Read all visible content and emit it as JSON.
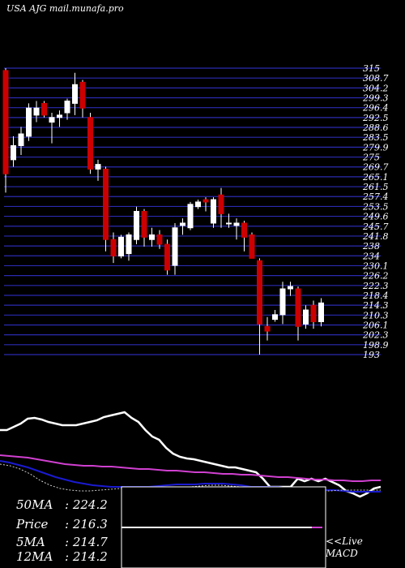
{
  "title": "USA AJG mail.munafa.pro",
  "chart_data": [
    {
      "type": "candlestick",
      "title": "USA AJG mail.munafa.pro",
      "y_tick_labels": [
        "315",
        "308.7",
        "304.2",
        "299.3",
        "296.4",
        "292.5",
        "288.6",
        "283.5",
        "279.9",
        "275",
        "269.7",
        "265.1",
        "261.5",
        "257.4",
        "253.5",
        "249.6",
        "245.7",
        "241.8",
        "238",
        "234",
        "230.1",
        "226.2",
        "222.3",
        "218.4",
        "214.3",
        "210.3",
        "206.1",
        "202.3",
        "198.9",
        "193"
      ],
      "ylim": [
        193,
        315
      ],
      "candles": [
        {
          "o": 270,
          "h": 315,
          "l": 262,
          "c": 314,
          "color": "red"
        },
        {
          "o": 276,
          "h": 286,
          "l": 273,
          "c": 282,
          "color": "white"
        },
        {
          "o": 282,
          "h": 290,
          "l": 278,
          "c": 287,
          "color": "white"
        },
        {
          "o": 286,
          "h": 300,
          "l": 284,
          "c": 298,
          "color": "white"
        },
        {
          "o": 298,
          "h": 301,
          "l": 292,
          "c": 295,
          "color": "white"
        },
        {
          "o": 300,
          "h": 301,
          "l": 294,
          "c": 295,
          "color": "red"
        },
        {
          "o": 292,
          "h": 296,
          "l": 283,
          "c": 294,
          "color": "white"
        },
        {
          "o": 294,
          "h": 297,
          "l": 290,
          "c": 295,
          "color": "white"
        },
        {
          "o": 296,
          "h": 302,
          "l": 293,
          "c": 301,
          "color": "white"
        },
        {
          "o": 300,
          "h": 313,
          "l": 295,
          "c": 308,
          "color": "white"
        },
        {
          "o": 309,
          "h": 310,
          "l": 294,
          "c": 298,
          "color": "red"
        },
        {
          "o": 294,
          "h": 296,
          "l": 270,
          "c": 272,
          "color": "red"
        },
        {
          "o": 272,
          "h": 276,
          "l": 267,
          "c": 274,
          "color": "white"
        },
        {
          "o": 272,
          "h": 273,
          "l": 237,
          "c": 242,
          "color": "red"
        },
        {
          "o": 242,
          "h": 245,
          "l": 232,
          "c": 235,
          "color": "red"
        },
        {
          "o": 235,
          "h": 244,
          "l": 234,
          "c": 243,
          "color": "white"
        },
        {
          "o": 236,
          "h": 245,
          "l": 233,
          "c": 244,
          "color": "white"
        },
        {
          "o": 242,
          "h": 256,
          "l": 240,
          "c": 254,
          "color": "white"
        },
        {
          "o": 254,
          "h": 255,
          "l": 239,
          "c": 243,
          "color": "red"
        },
        {
          "o": 242,
          "h": 247,
          "l": 239,
          "c": 244,
          "color": "white"
        },
        {
          "o": 244,
          "h": 246,
          "l": 238,
          "c": 240,
          "color": "red"
        },
        {
          "o": 240,
          "h": 242,
          "l": 227,
          "c": 229,
          "color": "red"
        },
        {
          "o": 231,
          "h": 249,
          "l": 227,
          "c": 247,
          "color": "white"
        },
        {
          "o": 248,
          "h": 251,
          "l": 244,
          "c": 249,
          "color": "white"
        },
        {
          "o": 247,
          "h": 258,
          "l": 246,
          "c": 257,
          "color": "white"
        },
        {
          "o": 258,
          "h": 259,
          "l": 255,
          "c": 256,
          "color": "white"
        },
        {
          "o": 258,
          "h": 260,
          "l": 254,
          "c": 259,
          "color": "red"
        },
        {
          "o": 249,
          "h": 260,
          "l": 247,
          "c": 259,
          "color": "white"
        },
        {
          "o": 261,
          "h": 264,
          "l": 247,
          "c": 253,
          "color": "red"
        },
        {
          "o": 249,
          "h": 253,
          "l": 247,
          "c": 249,
          "color": "white"
        },
        {
          "o": 249,
          "h": 251,
          "l": 242,
          "c": 248,
          "color": "white"
        },
        {
          "o": 249,
          "h": 250,
          "l": 237,
          "c": 243,
          "color": "red"
        },
        {
          "o": 244,
          "h": 245,
          "l": 234,
          "c": 234,
          "color": "red"
        },
        {
          "o": 233,
          "h": 234,
          "l": 193,
          "c": 206,
          "color": "red"
        },
        {
          "o": 205,
          "h": 209,
          "l": 199,
          "c": 203,
          "color": "red"
        },
        {
          "o": 208,
          "h": 212,
          "l": 207,
          "c": 210,
          "color": "white"
        },
        {
          "o": 210,
          "h": 224,
          "l": 206,
          "c": 221,
          "color": "white"
        },
        {
          "o": 221,
          "h": 224,
          "l": 218,
          "c": 222,
          "color": "white"
        },
        {
          "o": 221,
          "h": 222,
          "l": 199,
          "c": 205,
          "color": "red"
        },
        {
          "o": 206,
          "h": 214,
          "l": 204,
          "c": 212,
          "color": "white"
        },
        {
          "o": 214,
          "h": 216,
          "l": 204,
          "c": 207,
          "color": "red"
        },
        {
          "o": 207,
          "h": 217,
          "l": 205,
          "c": 215,
          "color": "white"
        }
      ]
    },
    {
      "type": "line",
      "series": [
        {
          "color": "#ffffff",
          "values": [
            530,
            530,
            526,
            522,
            516,
            515,
            517,
            520,
            522,
            524,
            524,
            524,
            522,
            520,
            518,
            514,
            512,
            510,
            508,
            515,
            520,
            530,
            538,
            542,
            552,
            559,
            563,
            565,
            566,
            568,
            570,
            572,
            574,
            576,
            576,
            578,
            580,
            582,
            590,
            600,
            600,
            600,
            600,
            590,
            593,
            590,
            593,
            590,
            594,
            598,
            605,
            608,
            612,
            608,
            602,
            600
          ]
        },
        {
          "color": "#d040d0",
          "values": [
            561,
            562,
            563,
            564,
            566,
            568,
            570,
            572,
            573,
            574,
            574,
            575,
            575,
            576,
            577,
            578,
            578,
            579,
            580,
            580,
            581,
            582,
            582,
            583,
            584,
            584,
            585,
            585,
            586,
            587,
            588,
            588,
            589,
            590,
            591,
            591,
            592,
            592,
            593,
            593,
            592,
            592
          ]
        },
        {
          "color": "#1a1ad0",
          "values": [
            568,
            570,
            573,
            576,
            580,
            584,
            588,
            591,
            594,
            596,
            598,
            599,
            600,
            600,
            600,
            600,
            600,
            599,
            598,
            597,
            597,
            597,
            596,
            596,
            596,
            597,
            598,
            600,
            600,
            600,
            600,
            601,
            601,
            602,
            603,
            604,
            604,
            605,
            606,
            606,
            606,
            606
          ]
        },
        {
          "color": "#cccccc",
          "values": [
            572,
            574,
            578,
            584,
            592,
            598,
            602,
            604,
            605,
            605,
            604,
            603,
            602,
            601,
            600,
            600,
            600,
            601,
            601,
            600,
            599,
            598,
            598,
            599,
            600,
            601,
            601,
            602,
            603,
            603,
            604,
            605,
            605,
            605,
            604,
            604,
            604,
            604,
            604
          ]
        }
      ]
    }
  ],
  "info": {
    "ma50_label": "50MA",
    "ma50_value": ": 224.2",
    "price_label": "Price",
    "price_value": ": 216.3",
    "ma5_label": "5MA",
    "ma5_value": ": 214.7",
    "ma12_label": "12MA",
    "ma12_value": ": 214.2"
  },
  "macd": {
    "live_label": "<<Live",
    "macd_label": "MACD"
  }
}
